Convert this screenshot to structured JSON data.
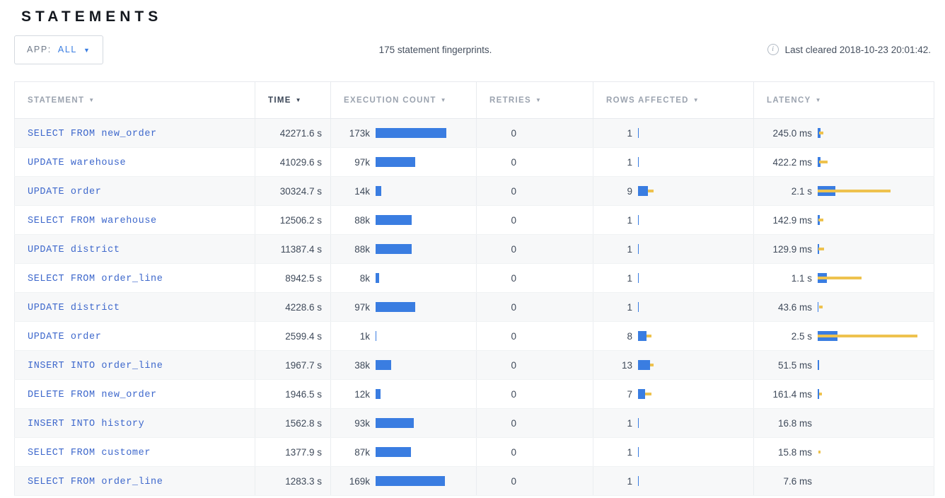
{
  "page": {
    "title": "STATEMENTS"
  },
  "toolbar": {
    "app_filter": {
      "label": "APP:",
      "value": "ALL",
      "caret_icon": "▼"
    },
    "summary": "175 statement fingerprints.",
    "info_icon": "i",
    "last_cleared": "Last cleared 2018-10-23 20:01:42."
  },
  "colors": {
    "bar_blue": "#3a7de1",
    "whisker_yellow": "#eec24e",
    "statement_link_blue": "#3e68cc",
    "header_gray": "#9ba3af",
    "sorted_header_dark": "#394455"
  },
  "table": {
    "columns": {
      "statement": {
        "label": "STATEMENT",
        "arrow": "▼"
      },
      "time": {
        "label": "TIME",
        "arrow": "▼",
        "sorted": true
      },
      "execution_count": {
        "label": "EXECUTION COUNT",
        "arrow": "▼"
      },
      "retries": {
        "label": "RETRIES",
        "arrow": "▼"
      },
      "rows_affected": {
        "label": "ROWS AFFECTED",
        "arrow": "▼"
      },
      "latency": {
        "label": "LATENCY",
        "arrow": "▼"
      }
    },
    "rows": [
      {
        "statement": "SELECT FROM new_order",
        "time": "42271.6 s",
        "exec_count": "173k",
        "exec_bar": 100,
        "retries": "0",
        "rows_affected": "1",
        "rows_bar": 1,
        "rows_wx": 0,
        "rows_ww": 0,
        "latency": "245.0 ms",
        "lat_bar": 4,
        "lat_wx": 2,
        "lat_ww": 6
      },
      {
        "statement": "UPDATE warehouse",
        "time": "41029.6 s",
        "exec_count": "97k",
        "exec_bar": 56,
        "retries": "0",
        "rows_affected": "1",
        "rows_bar": 1,
        "rows_wx": 0,
        "rows_ww": 0,
        "latency": "422.2 ms",
        "lat_bar": 4,
        "lat_wx": 2,
        "lat_ww": 12
      },
      {
        "statement": "UPDATE order",
        "time": "30324.7 s",
        "exec_count": "14k",
        "exec_bar": 8,
        "retries": "0",
        "rows_affected": "9",
        "rows_bar": 14,
        "rows_wx": 14,
        "rows_ww": 8,
        "latency": "2.1 s",
        "lat_bar": 25,
        "lat_wx": 0,
        "lat_ww": 103
      },
      {
        "statement": "SELECT FROM warehouse",
        "time": "12506.2 s",
        "exec_count": "88k",
        "exec_bar": 51,
        "retries": "0",
        "rows_affected": "1",
        "rows_bar": 1,
        "rows_wx": 0,
        "rows_ww": 0,
        "latency": "142.9 ms",
        "lat_bar": 3,
        "lat_wx": 1,
        "lat_ww": 7
      },
      {
        "statement": "UPDATE district",
        "time": "11387.4 s",
        "exec_count": "88k",
        "exec_bar": 51,
        "retries": "0",
        "rows_affected": "1",
        "rows_bar": 1,
        "rows_wx": 0,
        "rows_ww": 0,
        "latency": "129.9 ms",
        "lat_bar": 2,
        "lat_wx": 1,
        "lat_ww": 8
      },
      {
        "statement": "SELECT FROM order_line",
        "time": "8942.5 s",
        "exec_count": "8k",
        "exec_bar": 5,
        "retries": "0",
        "rows_affected": "1",
        "rows_bar": 1,
        "rows_wx": 0,
        "rows_ww": 0,
        "latency": "1.1 s",
        "lat_bar": 13,
        "lat_wx": 0,
        "lat_ww": 62
      },
      {
        "statement": "UPDATE district",
        "time": "4228.6 s",
        "exec_count": "97k",
        "exec_bar": 56,
        "retries": "0",
        "rows_affected": "1",
        "rows_bar": 1,
        "rows_wx": 0,
        "rows_ww": 0,
        "latency": "43.6 ms",
        "lat_bar": 1,
        "lat_wx": 2,
        "lat_ww": 5
      },
      {
        "statement": "UPDATE order",
        "time": "2599.4 s",
        "exec_count": "1k",
        "exec_bar": 1,
        "retries": "0",
        "rows_affected": "8",
        "rows_bar": 12,
        "rows_wx": 12,
        "rows_ww": 7,
        "latency": "2.5 s",
        "lat_bar": 28,
        "lat_wx": 0,
        "lat_ww": 141
      },
      {
        "statement": "INSERT INTO order_line",
        "time": "1967.7 s",
        "exec_count": "38k",
        "exec_bar": 22,
        "retries": "0",
        "rows_affected": "13",
        "rows_bar": 17,
        "rows_wx": 17,
        "rows_ww": 5,
        "latency": "51.5 ms",
        "lat_bar": 2,
        "lat_wx": 0,
        "lat_ww": 0
      },
      {
        "statement": "DELETE FROM new_order",
        "time": "1946.5 s",
        "exec_count": "12k",
        "exec_bar": 7,
        "retries": "0",
        "rows_affected": "7",
        "rows_bar": 10,
        "rows_wx": 10,
        "rows_ww": 9,
        "latency": "161.4 ms",
        "lat_bar": 2,
        "lat_wx": 2,
        "lat_ww": 4
      },
      {
        "statement": "INSERT INTO history",
        "time": "1562.8 s",
        "exec_count": "93k",
        "exec_bar": 54,
        "retries": "0",
        "rows_affected": "1",
        "rows_bar": 1,
        "rows_wx": 0,
        "rows_ww": 0,
        "latency": "16.8 ms",
        "lat_bar": 0,
        "lat_wx": 0,
        "lat_ww": 0
      },
      {
        "statement": "SELECT FROM customer",
        "time": "1377.9 s",
        "exec_count": "87k",
        "exec_bar": 50,
        "retries": "0",
        "rows_affected": "1",
        "rows_bar": 1,
        "rows_wx": 0,
        "rows_ww": 0,
        "latency": "15.8 ms",
        "lat_bar": 0,
        "lat_wx": 1,
        "lat_ww": 3
      },
      {
        "statement": "SELECT FROM order_line",
        "time": "1283.3 s",
        "exec_count": "169k",
        "exec_bar": 98,
        "retries": "0",
        "rows_affected": "1",
        "rows_bar": 1,
        "rows_wx": 0,
        "rows_ww": 0,
        "latency": "7.6 ms",
        "lat_bar": 0,
        "lat_wx": 0,
        "lat_ww": 0
      }
    ]
  }
}
